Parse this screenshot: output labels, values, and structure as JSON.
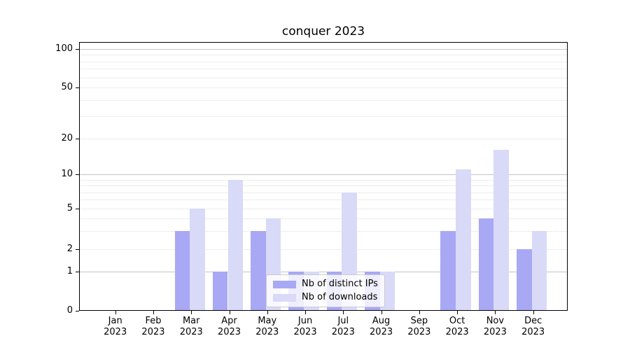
{
  "title": "conquer 2023",
  "chart_data": {
    "type": "bar",
    "title": "conquer 2023",
    "months": [
      "Jan",
      "Feb",
      "Mar",
      "Apr",
      "May",
      "Jun",
      "Jul",
      "Aug",
      "Sep",
      "Oct",
      "Nov",
      "Dec"
    ],
    "year": "2023",
    "categories": [
      "Jan 2023",
      "Feb 2023",
      "Mar 2023",
      "Apr 2023",
      "May 2023",
      "Jun 2023",
      "Jul 2023",
      "Aug 2023",
      "Sep 2023",
      "Oct 2023",
      "Nov 2023",
      "Dec 2023"
    ],
    "series": [
      {
        "name": "Nb of distinct IPs",
        "color": "#a8a8f4",
        "values": [
          0,
          0,
          3,
          1,
          3,
          1,
          1,
          1,
          0,
          3,
          4,
          2
        ]
      },
      {
        "name": "Nb of downloads",
        "color": "#d9d9f8",
        "values": [
          0,
          0,
          5,
          9,
          4,
          1,
          7,
          1,
          0,
          11,
          16,
          3
        ]
      }
    ],
    "yscale": "asinh",
    "ylim": [
      0,
      113
    ],
    "yticks": [
      0,
      1,
      2,
      5,
      10,
      20,
      50,
      100
    ],
    "grid": {
      "major": [
        1,
        10,
        100
      ],
      "minor": [
        2,
        3,
        4,
        5,
        6,
        7,
        8,
        9,
        20,
        30,
        40,
        50,
        60,
        70,
        80,
        90
      ]
    },
    "legend_position": "lower-center-inside",
    "colors": {
      "major_grid": "#c4c4cc",
      "minor_grid": "#ededf1",
      "axis": "#000000",
      "background": "#ffffff"
    }
  }
}
